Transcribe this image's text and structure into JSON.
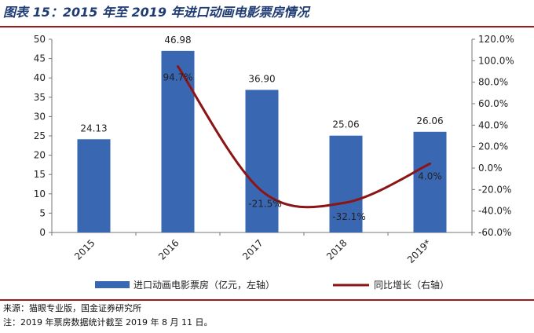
{
  "title": "图表 15：2015 年至 2019 年进口动画电影票房情况",
  "source": "来源：猫眼专业版，国金证券研究所",
  "note": "注：2019 年票房数据统计截至 2019 年 8 月 11 日。",
  "colors": {
    "bar": "#3a67b2",
    "line": "#8c1414",
    "title": "#1f3b73",
    "rule": "#9b1c1c"
  },
  "chart_data": {
    "type": "bar",
    "categories": [
      "2015",
      "2016",
      "2017",
      "2018",
      "2019*"
    ],
    "series": [
      {
        "name": "进口动画电影票房（亿元，左轴）",
        "type": "bar",
        "axis": "left",
        "values": [
          24.13,
          46.98,
          36.9,
          25.06,
          26.06
        ],
        "labels": [
          "24.13",
          "46.98",
          "36.90",
          "25.06",
          "26.06"
        ]
      },
      {
        "name": "同比增长（右轴）",
        "type": "line",
        "axis": "right",
        "values": [
          null,
          94.7,
          -21.5,
          -32.1,
          4.0
        ],
        "labels": [
          "",
          "94.7%",
          "-21.5%",
          "-32.1%",
          "4.0%"
        ]
      }
    ],
    "left_axis": {
      "range": [
        0,
        50
      ],
      "ticks": [
        "0",
        "5",
        "10",
        "15",
        "20",
        "25",
        "30",
        "35",
        "40",
        "45",
        "50"
      ]
    },
    "right_axis": {
      "range": [
        -60,
        120
      ],
      "ticks": [
        "-60.0%",
        "-40.0%",
        "-20.0%",
        "0.0%",
        "20.0%",
        "40.0%",
        "60.0%",
        "80.0%",
        "100.0%",
        "120.0%"
      ]
    },
    "legend_position": "bottom",
    "grid": false
  }
}
